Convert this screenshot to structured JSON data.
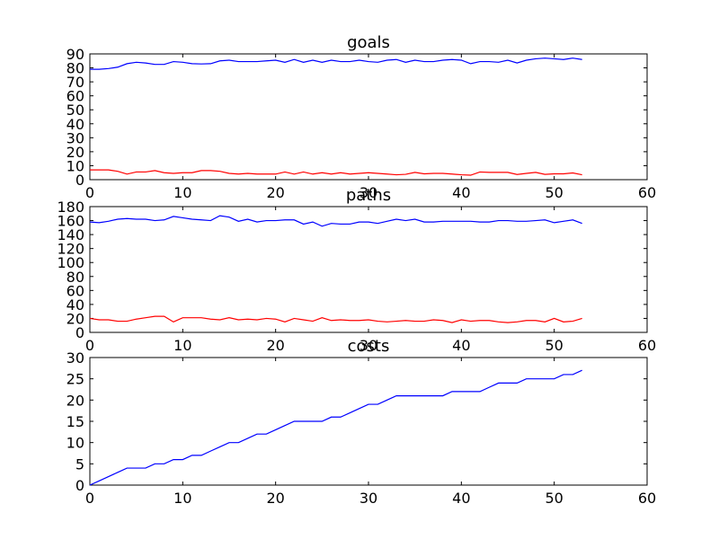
{
  "chart_data": [
    {
      "type": "line",
      "title": "goals",
      "xlim": [
        0,
        60
      ],
      "ylim": [
        0,
        90
      ],
      "xticks": [
        0,
        10,
        20,
        30,
        40,
        50,
        60
      ],
      "yticks": [
        0,
        10,
        20,
        30,
        40,
        50,
        60,
        70,
        80,
        90
      ],
      "grid": false,
      "series": [
        {
          "color": "#0000ff",
          "values": [
            79,
            79,
            79.5,
            80.5,
            83,
            84,
            83.5,
            82.5,
            82.5,
            84.5,
            84,
            83,
            82.8,
            83,
            85,
            85.5,
            84.5,
            84.5,
            84.5,
            85,
            85.5,
            84,
            86,
            84,
            85.5,
            84,
            85.5,
            84.5,
            84.5,
            85.5,
            84.5,
            84,
            85.5,
            86,
            84,
            85.5,
            84.5,
            84.5,
            85.5,
            86,
            85.5,
            83,
            84.5,
            84.5,
            84,
            85.5,
            83.5,
            85.5,
            86.5,
            87,
            86.5,
            86,
            87,
            86
          ]
        },
        {
          "color": "#ff0000",
          "values": [
            7,
            7,
            7,
            6,
            4,
            5.5,
            5.5,
            6.5,
            5,
            4.5,
            5,
            5,
            6.5,
            6.5,
            6,
            4.5,
            4,
            4.5,
            4,
            4,
            4,
            5.5,
            4,
            5.5,
            4,
            5,
            4,
            5,
            4,
            4.5,
            5,
            4.5,
            4,
            3.5,
            3.8,
            5.2,
            4.2,
            4.5,
            4.5,
            4,
            3.5,
            3.2,
            5.5,
            5.2,
            5.2,
            5.2,
            3.7,
            4.5,
            5.2,
            3.8,
            4.2,
            4.2,
            4.8,
            3.5
          ]
        }
      ]
    },
    {
      "type": "line",
      "title": "paths",
      "xlim": [
        0,
        60
      ],
      "ylim": [
        0,
        180
      ],
      "xticks": [
        0,
        10,
        20,
        30,
        40,
        50,
        60
      ],
      "yticks": [
        0,
        20,
        40,
        60,
        80,
        100,
        120,
        140,
        160,
        180
      ],
      "grid": false,
      "series": [
        {
          "color": "#0000ff",
          "values": [
            158,
            157,
            159,
            162,
            163,
            162,
            162,
            160,
            161,
            166,
            164,
            162,
            161,
            160,
            167,
            165,
            159,
            162,
            158,
            160,
            160,
            161,
            161,
            155,
            158,
            152,
            156,
            155,
            155,
            158,
            158,
            156,
            159,
            162,
            160,
            162,
            158,
            158,
            159,
            159,
            159,
            159,
            158,
            158,
            160,
            160,
            159,
            159,
            160,
            161,
            157,
            159,
            161,
            156
          ]
        },
        {
          "color": "#ff0000",
          "values": [
            20,
            18,
            18,
            16,
            16,
            19,
            21,
            23,
            23,
            15,
            21,
            21,
            21,
            19,
            18,
            21,
            18,
            19,
            18,
            20,
            19,
            15,
            20,
            18,
            16,
            21,
            17,
            18,
            17,
            17,
            18,
            16,
            15,
            16,
            17,
            16,
            16,
            18,
            17,
            14,
            18,
            16,
            17,
            17,
            15,
            14,
            15,
            17,
            17,
            15,
            20,
            15,
            16,
            20
          ]
        }
      ]
    },
    {
      "type": "line",
      "title": "costs",
      "xlim": [
        0,
        60
      ],
      "ylim": [
        0,
        30
      ],
      "xticks": [
        0,
        10,
        20,
        30,
        40,
        50,
        60
      ],
      "yticks": [
        0,
        5,
        10,
        15,
        20,
        25,
        30
      ],
      "grid": false,
      "series": [
        {
          "color": "#0000ff",
          "values": [
            0,
            1,
            2,
            3,
            4,
            4,
            4,
            5,
            5,
            6,
            6,
            7,
            7,
            8,
            9,
            10,
            10,
            11,
            12,
            12,
            13,
            14,
            15,
            15,
            15,
            15,
            16,
            16,
            17,
            18,
            19,
            19,
            20,
            21,
            21,
            21,
            21,
            21,
            21,
            22,
            22,
            22,
            22,
            23,
            24,
            24,
            24,
            25,
            25,
            25,
            25,
            26,
            26,
            27
          ]
        }
      ]
    }
  ]
}
